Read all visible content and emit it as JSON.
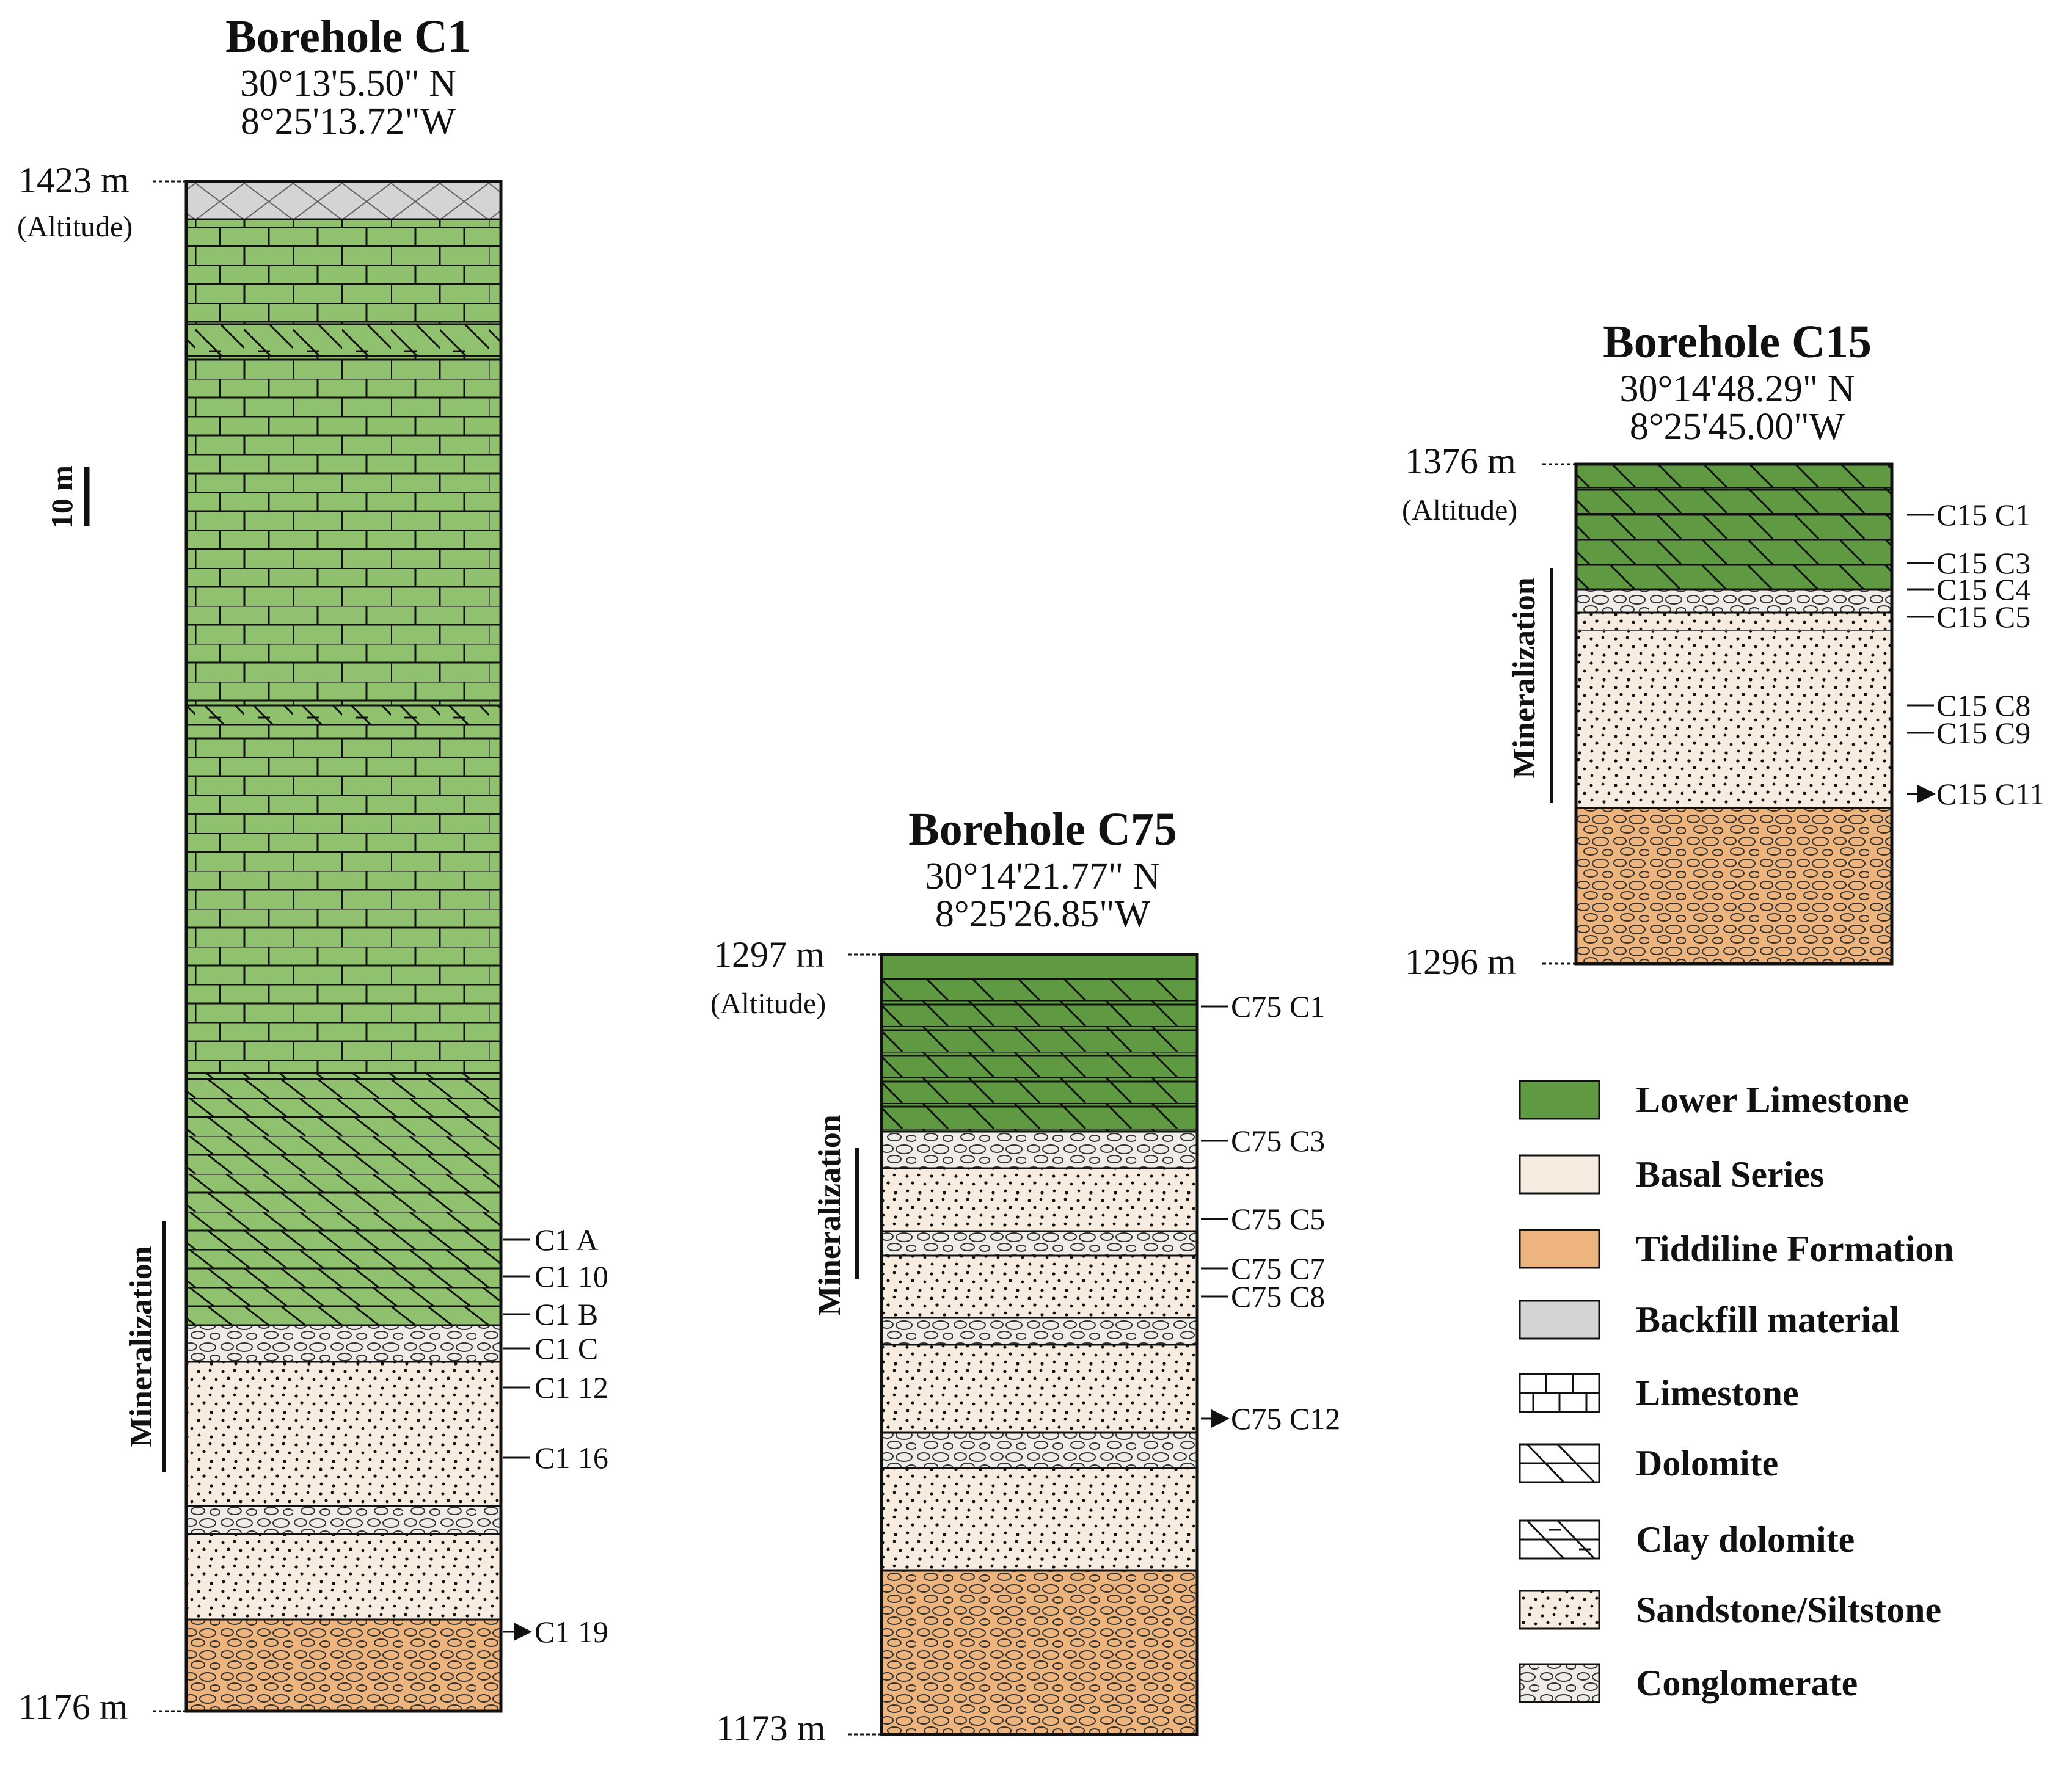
{
  "boreholes": [
    {
      "title": "Borehole C1",
      "lat": "30°13'5.50\" N",
      "lon": "8°25'13.72\"W",
      "top_label": "1423 m",
      "top_sub": "(Altitude)",
      "bottom_label": "1176 m",
      "mineralization_label": "Mineralization",
      "samples": [
        "C1 A",
        "C1 10",
        "C1 B",
        "C1 C",
        "C1 12",
        "C1 16",
        "C1 19"
      ]
    },
    {
      "title": "Borehole C75",
      "lat": "30°14'21.77\" N",
      "lon": "8°25'26.85\"W",
      "top_label": "1297 m",
      "top_sub": "(Altitude)",
      "bottom_label": "1173 m",
      "mineralization_label": "Mineralization",
      "samples": [
        "C75 C1",
        "C75 C3",
        "C75 C5",
        "C75 C7",
        "C75 C8",
        "C75 C12"
      ]
    },
    {
      "title": "Borehole C15",
      "lat": "30°14'48.29\" N",
      "lon": "8°25'45.00\"W",
      "top_label": "1376 m",
      "top_sub": "(Altitude)",
      "bottom_label": "1296 m",
      "mineralization_label": "Mineralization",
      "samples": [
        "C15 C1",
        "C15 C3",
        "C15 C4",
        "C15 C5",
        "C15 C8",
        "C15 C9",
        "C15 C11"
      ]
    }
  ],
  "scale_label": "10 m",
  "legend": [
    {
      "label": "Lower Limestone",
      "icon": "swatch-green"
    },
    {
      "label": "Basal Series",
      "icon": "swatch-beige"
    },
    {
      "label": "Tiddiline Formation",
      "icon": "swatch-orange"
    },
    {
      "label": "Backfill material",
      "icon": "swatch-gray"
    },
    {
      "label": "Limestone",
      "icon": "limestone-pattern"
    },
    {
      "label": "Dolomite",
      "icon": "dolomite-pattern"
    },
    {
      "label": "Clay dolomite",
      "icon": "clay-dolomite-pattern"
    },
    {
      "label": "Sandstone/Siltstone",
      "icon": "sandstone-pattern"
    },
    {
      "label": "Conglomerate",
      "icon": "conglomerate-pattern"
    }
  ],
  "colors": {
    "lower_limestone": "#5f9a43",
    "limestone_fill": "#8fc16f",
    "basal_series": "#f8ebdf",
    "tiddiline": "#eeb47d",
    "backfill": "#d4d4d4"
  }
}
